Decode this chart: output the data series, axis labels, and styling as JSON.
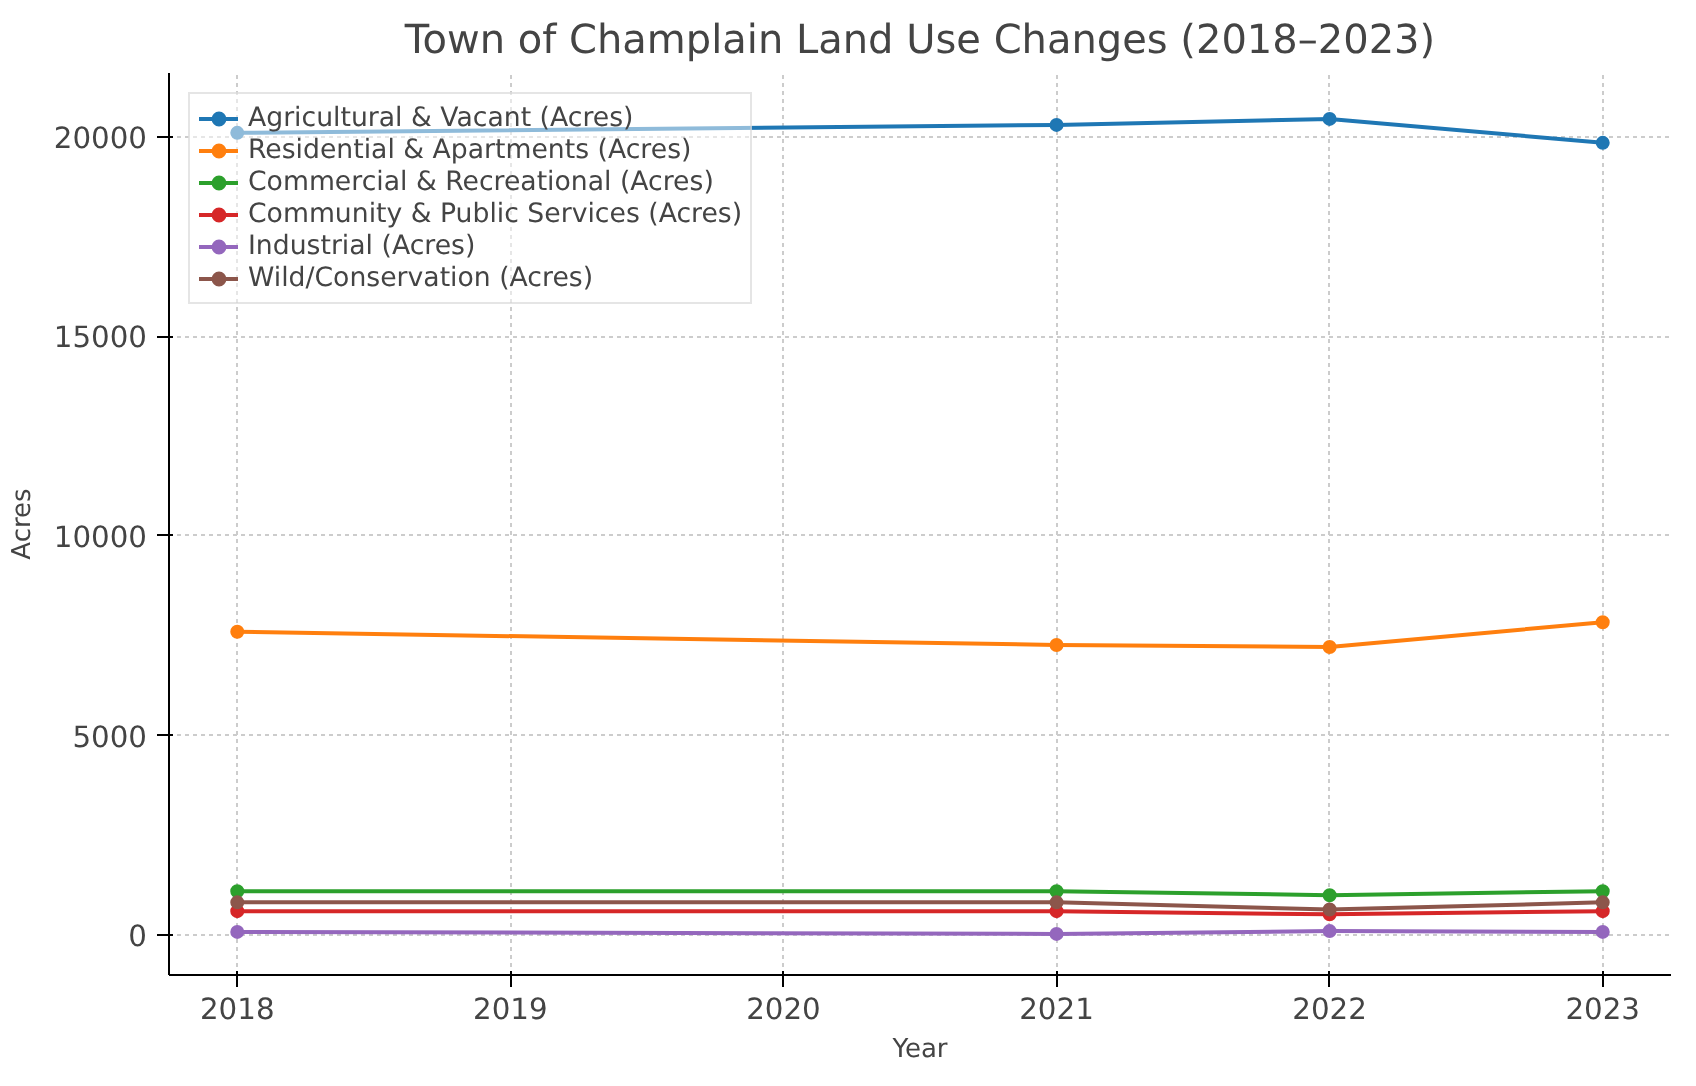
{
  "chart_data": {
    "type": "line",
    "title": "Town of Champlain Land Use Changes (2018–2023)",
    "xlabel": "Year",
    "ylabel": "Acres",
    "x": [
      2018,
      2021,
      2022,
      2023
    ],
    "series": [
      {
        "name": "Agricultural & Vacant (Acres)",
        "color": "#1f77b4",
        "values": [
          20100,
          20300,
          20450,
          19850
        ]
      },
      {
        "name": "Residential & Apartments (Acres)",
        "color": "#ff7f0e",
        "values": [
          7600,
          7270,
          7220,
          7840
        ]
      },
      {
        "name": "Commercial & Recreational (Acres)",
        "color": "#2ca02c",
        "values": [
          1100,
          1100,
          1000,
          1100
        ]
      },
      {
        "name": "Community & Public Services (Acres)",
        "color": "#d62728",
        "values": [
          600,
          600,
          520,
          600
        ]
      },
      {
        "name": "Industrial (Acres)",
        "color": "#9467bd",
        "values": [
          80,
          30,
          100,
          80
        ]
      },
      {
        "name": "Wild/Conservation (Acres)",
        "color": "#8c564b",
        "values": [
          820,
          820,
          640,
          820
        ]
      }
    ],
    "xlim": [
      2017.75,
      2023.25
    ],
    "xticks": [
      2018,
      2019,
      2020,
      2021,
      2022,
      2023
    ],
    "ylim": [
      -1000,
      21600
    ],
    "yticks": [
      0,
      5000,
      10000,
      15000,
      20000
    ],
    "grid": true,
    "legend": "top left",
    "marker": "circle",
    "line_style": "solid"
  }
}
